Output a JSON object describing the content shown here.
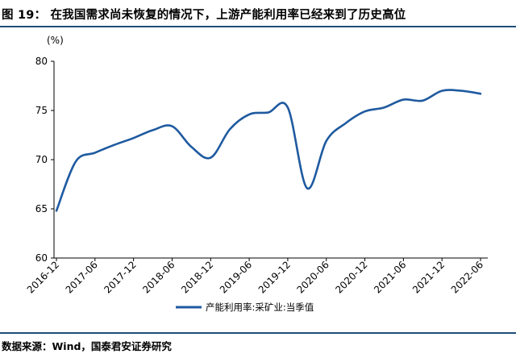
{
  "figure": {
    "title": "图 19：  在我国需求尚未恢复的情况下，上游产能利用率已经来到了历史高位",
    "source": "数据来源：Wind，国泰君安证券研究"
  },
  "chart_data": {
    "type": "line",
    "unit": "(%)",
    "ylim": [
      60,
      80
    ],
    "yticks": [
      "60",
      "65",
      "70",
      "75",
      "80"
    ],
    "xticks": [
      "2016-12",
      "2017-06",
      "2017-12",
      "2018-06",
      "2018-12",
      "2019-06",
      "2019-12",
      "2020-06",
      "2020-12",
      "2021-06",
      "2021-12",
      "2022-06"
    ],
    "legend_position": "bottom-center",
    "grid": false,
    "series": [
      {
        "name": "产能利用率:采矿业:当季值",
        "color": "#1f5aa0",
        "x": [
          "2016-12",
          "2017-03",
          "2017-06",
          "2017-09",
          "2017-12",
          "2018-03",
          "2018-06",
          "2018-09",
          "2018-12",
          "2019-03",
          "2019-06",
          "2019-09",
          "2019-12",
          "2020-03",
          "2020-06",
          "2020-09",
          "2020-12",
          "2021-03",
          "2021-06",
          "2021-09",
          "2021-12",
          "2022-03",
          "2022-06"
        ],
        "values": [
          64.8,
          69.8,
          70.7,
          71.5,
          72.2,
          73.0,
          73.4,
          71.3,
          70.2,
          73.1,
          74.6,
          74.8,
          75.3,
          67.1,
          71.9,
          73.7,
          74.9,
          75.3,
          76.1,
          76.0,
          77.0,
          77.0,
          76.7
        ]
      }
    ]
  }
}
